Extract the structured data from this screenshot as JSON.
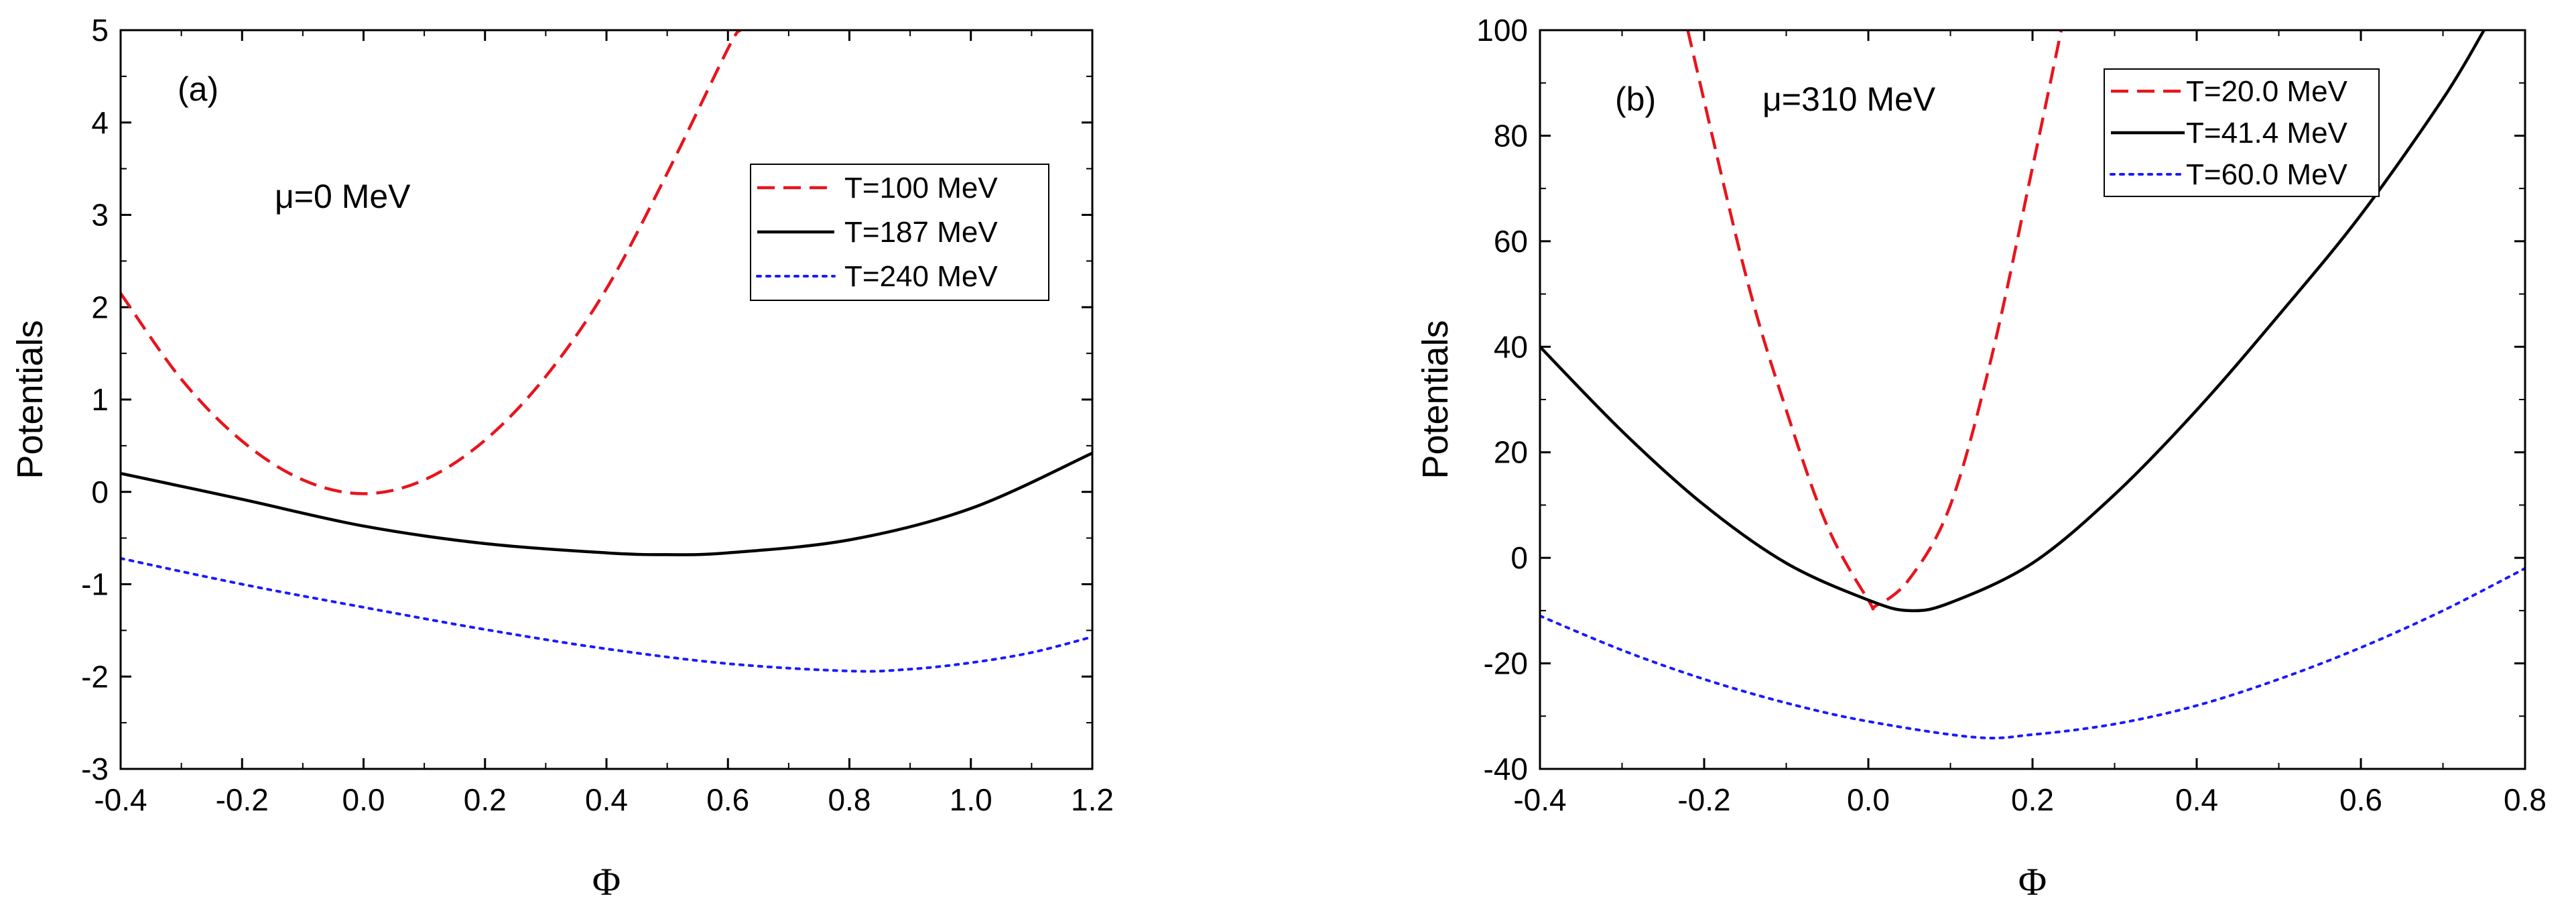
{
  "chart_data": [
    {
      "type": "line",
      "panel_label": "(a)",
      "annotation": "μ=0 MeV",
      "xlabel": "Φ",
      "ylabel": "Potentials",
      "xlim": [
        -0.4,
        1.2
      ],
      "ylim": [
        -3,
        5
      ],
      "xticks": [
        -0.4,
        -0.2,
        0.0,
        0.2,
        0.4,
        0.6,
        0.8,
        1.0,
        1.2
      ],
      "xtick_labels": [
        "-0.4",
        "-0.2",
        "0.0",
        "0.2",
        "0.4",
        "0.6",
        "0.8",
        "1.0",
        "1.2"
      ],
      "yticks": [
        -3,
        -2,
        -1,
        0,
        1,
        2,
        3,
        4,
        5
      ],
      "ytick_labels": [
        "-3",
        "-2",
        "-1",
        "0",
        "1",
        "2",
        "3",
        "4",
        "5"
      ],
      "legend_position": "upper-right",
      "series": [
        {
          "name": "T=100 MeV",
          "color": "#e8141c",
          "style": "dashed",
          "x": [
            -0.4,
            -0.3,
            -0.2,
            -0.1,
            0.0,
            0.1,
            0.2,
            0.3,
            0.4,
            0.5,
            0.6,
            0.62
          ],
          "y": [
            2.15,
            1.22,
            0.55,
            0.13,
            -0.02,
            0.13,
            0.56,
            1.25,
            2.2,
            3.45,
            4.8,
            5.0
          ]
        },
        {
          "name": "T=187 MeV",
          "color": "#000000",
          "style": "solid",
          "x": [
            -0.4,
            -0.2,
            0.0,
            0.2,
            0.4,
            0.5,
            0.6,
            0.8,
            1.0,
            1.2
          ],
          "y": [
            0.2,
            -0.08,
            -0.37,
            -0.56,
            -0.66,
            -0.68,
            -0.66,
            -0.52,
            -0.18,
            0.42
          ]
        },
        {
          "name": "T=240 MeV",
          "color": "#1a1aff",
          "style": "dotted",
          "x": [
            -0.4,
            -0.2,
            0.0,
            0.2,
            0.4,
            0.6,
            0.8,
            0.9,
            1.0,
            1.1,
            1.2
          ],
          "y": [
            -0.72,
            -1.0,
            -1.25,
            -1.49,
            -1.7,
            -1.86,
            -1.94,
            -1.92,
            -1.85,
            -1.74,
            -1.57
          ]
        }
      ]
    },
    {
      "type": "line",
      "panel_label": "(b)",
      "annotation": "μ=310 MeV",
      "xlabel": "Φ",
      "ylabel": "Potentials",
      "xlim": [
        -0.4,
        0.8
      ],
      "ylim": [
        -40,
        100
      ],
      "xticks": [
        -0.4,
        -0.2,
        0.0,
        0.2,
        0.4,
        0.6,
        0.8
      ],
      "xtick_labels": [
        "-0.4",
        "-0.2",
        "0.0",
        "0.2",
        "0.4",
        "0.6",
        "0.8"
      ],
      "yticks": [
        -40,
        -20,
        0,
        20,
        40,
        60,
        80,
        100
      ],
      "ytick_labels": [
        "-40",
        "-20",
        "0",
        "20",
        "40",
        "60",
        "80",
        "100"
      ],
      "legend_position": "top-right",
      "series": [
        {
          "name": "T=20.0 MeV",
          "color": "#e8141c",
          "style": "dashed",
          "x": [
            -0.22,
            -0.15,
            -0.1,
            -0.05,
            0.0,
            0.01,
            0.05,
            0.1,
            0.15,
            0.2,
            0.235
          ],
          "y": [
            100,
            54,
            28,
            6,
            -8,
            -9,
            -4,
            10,
            38,
            74,
            100
          ]
        },
        {
          "name": "T=41.4 MeV",
          "color": "#000000",
          "style": "solid",
          "x": [
            -0.4,
            -0.3,
            -0.2,
            -0.1,
            0.0,
            0.05,
            0.1,
            0.2,
            0.3,
            0.4,
            0.5,
            0.6,
            0.7,
            0.75
          ],
          "y": [
            40,
            24,
            10,
            -1,
            -8,
            -10,
            -8.5,
            -1,
            12,
            28,
            46,
            65,
            87,
            100
          ]
        },
        {
          "name": "T=60.0 MeV",
          "color": "#1a1aff",
          "style": "dotted",
          "x": [
            -0.4,
            -0.3,
            -0.2,
            -0.1,
            0.0,
            0.13,
            0.2,
            0.3,
            0.4,
            0.5,
            0.6,
            0.7,
            0.8
          ],
          "y": [
            -11,
            -17.5,
            -23,
            -27.5,
            -31,
            -34,
            -33.5,
            -31.5,
            -28,
            -23,
            -17,
            -10,
            -2
          ]
        }
      ]
    }
  ]
}
